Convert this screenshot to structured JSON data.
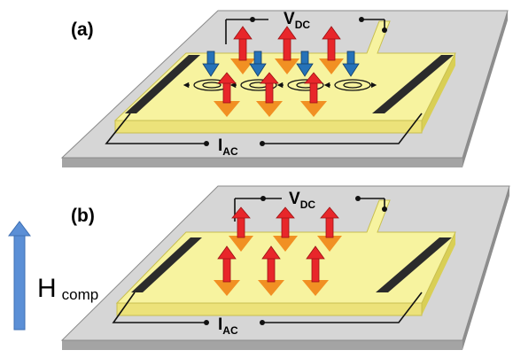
{
  "panels": [
    {
      "label": "(a)",
      "voltage": {
        "main": "V",
        "sub": "DC"
      },
      "current": {
        "main": "I",
        "sub": "AC"
      }
    },
    {
      "label": "(b)",
      "voltage": {
        "main": "V",
        "sub": "DC"
      },
      "current": {
        "main": "I",
        "sub": "AC"
      }
    }
  ],
  "field": {
    "main": "H",
    "sub": "comp"
  },
  "colors": {
    "substrate_top": "#d6d6d6",
    "substrate_side": "#a4a4a4",
    "film_top": "#f6f29a",
    "film_side": "#e6dc66",
    "contact": "#2b2b2b",
    "spin_up": "#e8262a",
    "spin_down": "#2672b8",
    "precession_cone": "#f08a1c",
    "field_arrow": "#5b8fd6"
  },
  "icons": [
    "spin-up-arrow-icon",
    "spin-down-arrow-icon",
    "precession-orbit-icon",
    "field-arrow-icon"
  ]
}
